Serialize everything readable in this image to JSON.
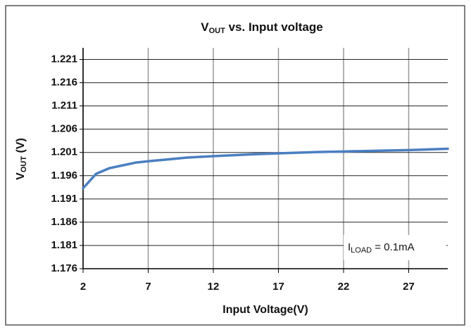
{
  "chart_data": {
    "type": "line",
    "title": [
      "V",
      "OUT",
      " vs.  Input voltage"
    ],
    "y_label": [
      "V",
      "OUT",
      " (V)"
    ],
    "x_label": "Input Voltage(V)",
    "annotation": [
      "I",
      "LOAD",
      " = 0.1mA"
    ],
    "x": [
      2,
      3,
      4,
      5,
      6,
      7,
      10,
      12,
      15,
      17,
      20,
      22,
      25,
      27,
      30
    ],
    "series": [
      {
        "color": "#4a7fc1",
        "values": [
          1.1933,
          1.1964,
          1.1976,
          1.1982,
          1.1988,
          1.1991,
          1.1999,
          1.2002,
          1.2006,
          1.2008,
          1.2011,
          1.2012,
          1.2014,
          1.2015,
          1.2018
        ]
      }
    ],
    "xlim": [
      2,
      30
    ],
    "xticks": [
      2,
      7,
      12,
      17,
      22,
      27
    ],
    "ylim": [
      1.176,
      1.2235
    ],
    "yticks": [
      1.176,
      1.181,
      1.186,
      1.191,
      1.196,
      1.201,
      1.206,
      1.211,
      1.216,
      1.221
    ],
    "grid": true
  }
}
